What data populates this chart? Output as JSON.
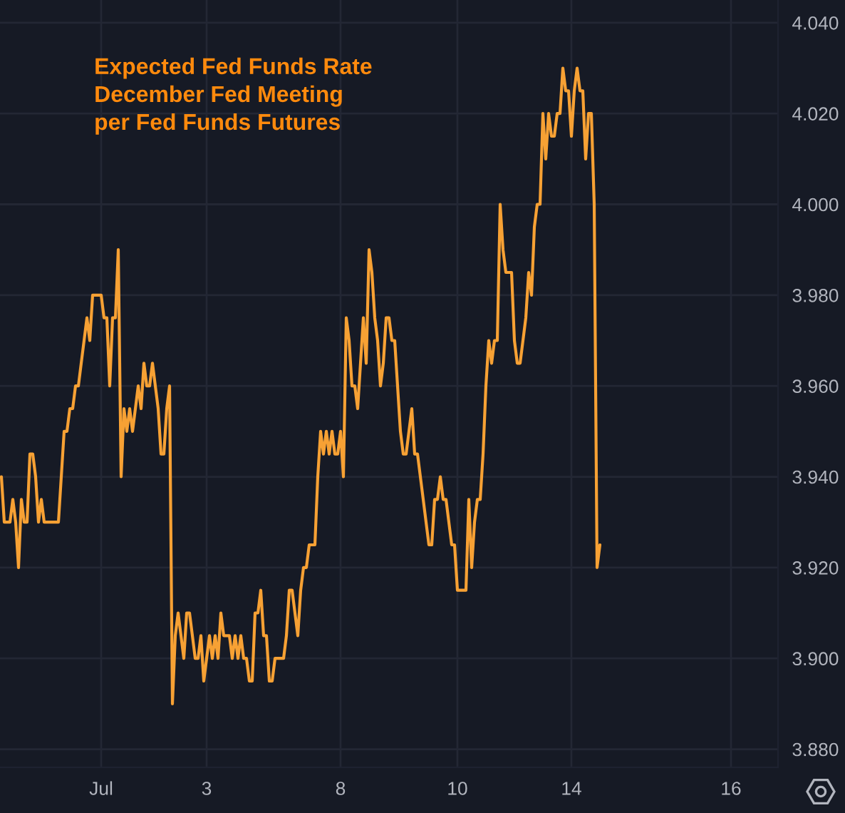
{
  "chart_data": {
    "type": "line",
    "title": "Expected Fed Funds Rate\nDecember Fed Meeting\nper Fed Funds Futures",
    "categories": [
      null,
      null,
      null,
      null,
      null,
      null,
      null,
      null,
      null,
      null,
      null,
      null,
      null,
      null,
      null,
      null,
      null,
      null,
      null,
      null,
      null,
      null,
      null,
      null,
      null,
      null,
      null,
      null,
      null,
      null,
      null,
      null,
      null,
      null,
      null,
      "Jul",
      null,
      null,
      null,
      null,
      null,
      null,
      null,
      null,
      null,
      null,
      null,
      null,
      null,
      null,
      null,
      null,
      null,
      null,
      null,
      null,
      null,
      null,
      null,
      null,
      null,
      null,
      null,
      null,
      null,
      null,
      null,
      null,
      null,
      null,
      null,
      null,
      "3",
      null,
      null,
      null,
      null,
      null,
      null,
      null,
      null,
      null,
      null,
      null,
      null,
      null,
      null,
      null,
      null,
      null,
      null,
      null,
      null,
      null,
      null,
      null,
      null,
      null,
      null,
      null,
      null,
      null,
      null,
      null,
      null,
      null,
      null,
      null,
      null,
      null,
      null,
      null,
      null,
      null,
      null,
      null,
      null,
      null,
      null,
      "8",
      null,
      null,
      null,
      null,
      null,
      null,
      null,
      null,
      null,
      null,
      null,
      null,
      null,
      null,
      null,
      null,
      null,
      null,
      null,
      null,
      null,
      null,
      null,
      null,
      null,
      null,
      null,
      null,
      null,
      null,
      null,
      null,
      null,
      null,
      null,
      null,
      null,
      null,
      null,
      null,
      "10",
      null,
      null,
      null,
      null,
      null,
      null,
      null,
      null,
      null,
      null,
      null,
      null,
      null,
      null,
      null,
      null,
      null,
      null,
      null,
      null,
      null,
      null,
      null,
      null,
      null,
      null,
      null,
      null,
      null,
      null,
      null,
      null,
      null,
      null,
      null,
      null,
      null,
      null,
      null,
      "14",
      null,
      null,
      null,
      null,
      null,
      null,
      null,
      null,
      null,
      null,
      null,
      null,
      null,
      null,
      null,
      null,
      null,
      null,
      null,
      null,
      null,
      null,
      null,
      null,
      null,
      null,
      null,
      null,
      null,
      null,
      null,
      null,
      null,
      null,
      null,
      null,
      null,
      null,
      null,
      null,
      null,
      null,
      null,
      null,
      null,
      null,
      null,
      null,
      null,
      null,
      null,
      null,
      null,
      null,
      null,
      "16",
      null,
      null,
      null,
      null,
      null,
      null,
      null,
      null,
      null,
      null,
      null,
      null,
      null,
      null,
      null,
      null
    ],
    "series": [
      {
        "color": "#f7a134",
        "values": [
          3.94,
          3.93,
          3.93,
          3.93,
          3.935,
          3.93,
          3.92,
          3.935,
          3.93,
          3.93,
          3.945,
          3.945,
          3.94,
          3.93,
          3.935,
          3.93,
          3.93,
          3.93,
          3.93,
          3.93,
          3.93,
          3.94,
          3.95,
          3.95,
          3.955,
          3.955,
          3.96,
          3.96,
          3.965,
          3.97,
          3.975,
          3.97,
          3.98,
          3.98,
          3.98,
          3.98,
          3.975,
          3.975,
          3.96,
          3.975,
          3.975,
          3.99,
          3.94,
          3.955,
          3.95,
          3.955,
          3.95,
          3.955,
          3.96,
          3.955,
          3.965,
          3.96,
          3.96,
          3.965,
          3.96,
          3.955,
          3.945,
          3.945,
          3.955,
          3.96,
          3.89,
          3.905,
          3.91,
          3.905,
          3.9,
          3.91,
          3.91,
          3.905,
          3.9,
          3.9,
          3.905,
          3.895,
          3.9,
          3.905,
          3.9,
          3.905,
          3.9,
          3.91,
          3.905,
          3.905,
          3.905,
          3.9,
          3.905,
          3.9,
          3.905,
          3.9,
          3.9,
          3.895,
          3.895,
          3.91,
          3.91,
          3.915,
          3.905,
          3.905,
          3.895,
          3.895,
          3.9,
          3.9,
          3.9,
          3.9,
          3.905,
          3.915,
          3.915,
          3.91,
          3.905,
          3.915,
          3.92,
          3.92,
          3.925,
          3.925,
          3.925,
          3.94,
          3.95,
          3.945,
          3.95,
          3.945,
          3.95,
          3.945,
          3.945,
          3.95,
          3.94,
          3.975,
          3.97,
          3.96,
          3.96,
          3.955,
          3.965,
          3.975,
          3.965,
          3.99,
          3.985,
          3.975,
          3.97,
          3.96,
          3.965,
          3.975,
          3.975,
          3.97,
          3.97,
          3.96,
          3.95,
          3.945,
          3.945,
          3.95,
          3.955,
          3.945,
          3.945,
          3.94,
          3.935,
          3.93,
          3.925,
          3.925,
          3.935,
          3.935,
          3.94,
          3.935,
          3.935,
          3.93,
          3.925,
          3.925,
          3.915,
          3.915,
          3.915,
          3.915,
          3.935,
          3.92,
          3.93,
          3.935,
          3.935,
          3.945,
          3.96,
          3.97,
          3.965,
          3.97,
          3.97,
          4.0,
          3.99,
          3.985,
          3.985,
          3.985,
          3.97,
          3.965,
          3.965,
          3.97,
          3.975,
          3.985,
          3.98,
          3.995,
          4.0,
          4.0,
          4.02,
          4.01,
          4.02,
          4.015,
          4.015,
          4.02,
          4.02,
          4.03,
          4.025,
          4.025,
          4.015,
          4.025,
          4.03,
          4.025,
          4.025,
          4.01,
          4.02,
          4.02,
          4.0,
          3.92,
          3.925,
          null,
          null,
          null,
          null,
          null,
          null,
          null,
          null,
          null,
          null,
          null,
          null,
          null,
          null,
          null,
          null,
          null,
          null,
          null,
          null,
          null,
          null,
          null,
          null,
          null,
          null,
          null,
          null,
          null,
          null,
          null,
          null,
          null,
          null,
          null,
          null,
          null,
          null,
          null,
          null,
          null,
          null,
          null,
          null,
          null,
          null,
          null,
          null,
          null,
          null,
          null,
          null,
          null,
          null,
          null,
          null,
          null,
          null,
          null,
          null,
          null,
          null
        ]
      }
    ],
    "ylim": [
      3.876,
      4.045
    ],
    "yticks": [
      {
        "value": 3.88,
        "label": "3.880"
      },
      {
        "value": 3.9,
        "label": "3.900"
      },
      {
        "value": 3.92,
        "label": "3.920"
      },
      {
        "value": 3.94,
        "label": "3.940"
      },
      {
        "value": 3.96,
        "label": "3.960"
      },
      {
        "value": 3.98,
        "label": "3.980"
      },
      {
        "value": 4.0,
        "label": "4.000"
      },
      {
        "value": 4.02,
        "label": "4.020"
      },
      {
        "value": 4.04,
        "label": "4.040"
      }
    ],
    "grid": true
  }
}
